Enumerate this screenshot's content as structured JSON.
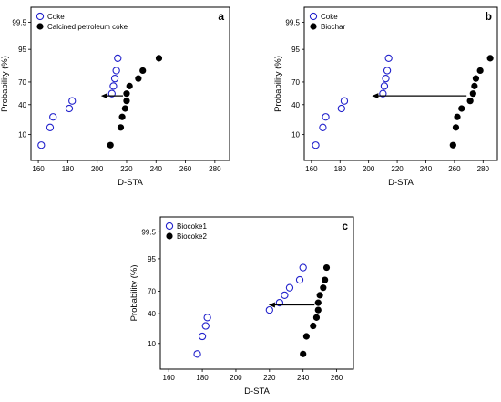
{
  "chart_data": [
    {
      "type": "scatter",
      "panel_label": "a",
      "xlabel": "D-STA",
      "ylabel": "Probability (%)",
      "xlim": [
        155,
        290
      ],
      "x_ticks": [
        160,
        180,
        200,
        220,
        240,
        260,
        280
      ],
      "y_scale": "probability",
      "y_ticks": [
        10,
        40,
        70,
        95,
        99.5
      ],
      "legend_position": "top-left",
      "annotation": "arrow pointing from the filled series toward the open series",
      "series": [
        {
          "name": "Coke",
          "marker": "open-circle",
          "color": "#2222cc",
          "points": [
            [
              162,
              5
            ],
            [
              168,
              15
            ],
            [
              170,
              25
            ],
            [
              181,
              35
            ],
            [
              183,
              45
            ],
            [
              210,
              55
            ],
            [
              211,
              65
            ],
            [
              212,
              74
            ],
            [
              213,
              82
            ],
            [
              214,
              91
            ]
          ]
        },
        {
          "name": "Calcined petroleum coke",
          "marker": "filled-circle",
          "color": "#000000",
          "points": [
            [
              209,
              5
            ],
            [
              216,
              15
            ],
            [
              217,
              25
            ],
            [
              219,
              35
            ],
            [
              220,
              45
            ],
            [
              220,
              55
            ],
            [
              222,
              65
            ],
            [
              228,
              74
            ],
            [
              231,
              82
            ],
            [
              242,
              91
            ]
          ]
        }
      ]
    },
    {
      "type": "scatter",
      "panel_label": "b",
      "xlabel": "D-STA",
      "ylabel": "Probability (%)",
      "xlim": [
        155,
        290
      ],
      "x_ticks": [
        160,
        180,
        200,
        220,
        240,
        260,
        280
      ],
      "y_scale": "probability",
      "y_ticks": [
        10,
        40,
        70,
        95,
        99.5
      ],
      "legend_position": "top-left",
      "annotation": "arrow pointing from the filled series toward the open series",
      "series": [
        {
          "name": "Coke",
          "marker": "open-circle",
          "color": "#2222cc",
          "points": [
            [
              163,
              5
            ],
            [
              168,
              15
            ],
            [
              170,
              25
            ],
            [
              181,
              35
            ],
            [
              183,
              45
            ],
            [
              210,
              55
            ],
            [
              211,
              65
            ],
            [
              212,
              74
            ],
            [
              213,
              82
            ],
            [
              214,
              91
            ]
          ]
        },
        {
          "name": "Biochar",
          "marker": "filled-circle",
          "color": "#000000",
          "points": [
            [
              259,
              5
            ],
            [
              261,
              15
            ],
            [
              262,
              25
            ],
            [
              265,
              35
            ],
            [
              271,
              45
            ],
            [
              273,
              55
            ],
            [
              274,
              65
            ],
            [
              275,
              74
            ],
            [
              278,
              82
            ],
            [
              285,
              91
            ]
          ]
        }
      ]
    },
    {
      "type": "scatter",
      "panel_label": "c",
      "xlabel": "D-STA",
      "ylabel": "Probability (%)",
      "xlim": [
        155,
        270
      ],
      "x_ticks": [
        160,
        180,
        200,
        220,
        240,
        260
      ],
      "y_scale": "probability",
      "y_ticks": [
        10,
        40,
        70,
        95,
        99.5
      ],
      "legend_position": "top-left",
      "annotation": "arrow pointing from the filled series toward the open series",
      "series": [
        {
          "name": "Biocoke1",
          "marker": "open-circle",
          "color": "#2222cc",
          "points": [
            [
              177,
              5
            ],
            [
              180,
              15
            ],
            [
              182,
              25
            ],
            [
              183,
              35
            ],
            [
              220,
              45
            ],
            [
              226,
              55
            ],
            [
              229,
              65
            ],
            [
              232,
              74
            ],
            [
              238,
              82
            ],
            [
              240,
              91
            ]
          ]
        },
        {
          "name": "Biocoke2",
          "marker": "filled-circle",
          "color": "#000000",
          "points": [
            [
              240,
              5
            ],
            [
              242,
              15
            ],
            [
              246,
              25
            ],
            [
              248,
              35
            ],
            [
              249,
              45
            ],
            [
              249,
              55
            ],
            [
              250,
              65
            ],
            [
              252,
              74
            ],
            [
              253,
              82
            ],
            [
              254,
              91
            ]
          ]
        }
      ]
    }
  ]
}
